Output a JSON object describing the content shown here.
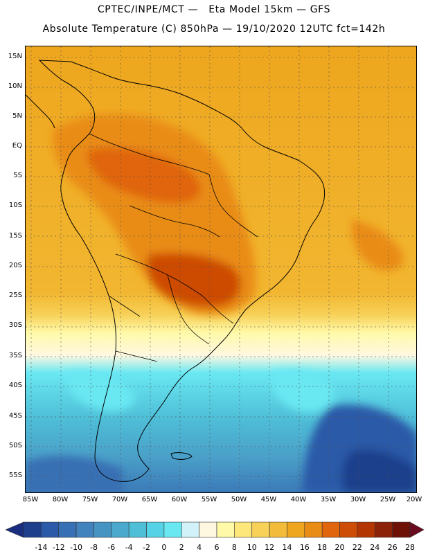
{
  "header": {
    "line1": "CPTEC/INPE/MCT —   Eta Model 15km — GFS",
    "line2": "Absolute Temperature (C) 850hPa — 19/10/2020 12UTC fct=142h"
  },
  "map": {
    "region": "South America",
    "lat_labels": [
      "15N",
      "10N",
      "5N",
      "EQ",
      "5S",
      "10S",
      "15S",
      "20S",
      "25S",
      "30S",
      "35S",
      "40S",
      "45S",
      "50S",
      "55S"
    ],
    "lon_labels": [
      "85W",
      "80W",
      "75W",
      "70W",
      "65W",
      "60W",
      "55W",
      "50W",
      "45W",
      "40W",
      "35W",
      "30W",
      "25W",
      "20W"
    ]
  },
  "colorbar": {
    "ticks": [
      "-14",
      "-12",
      "-10",
      "-8",
      "-6",
      "-4",
      "-2",
      "0",
      "2",
      "4",
      "6",
      "8",
      "10",
      "12",
      "14",
      "16",
      "18",
      "20",
      "22",
      "24",
      "26",
      "28"
    ],
    "colors": [
      "#1e3f8c",
      "#2a5aa8",
      "#3770b4",
      "#4282bd",
      "#4694c2",
      "#4aa9cc",
      "#4fbfd8",
      "#56d2e6",
      "#69e8f2",
      "#d0f2f8",
      "#fff8e0",
      "#fff9a8",
      "#fde77a",
      "#f7d158",
      "#f2bc3a",
      "#eea61e",
      "#e98c16",
      "#e0650c",
      "#cd4c06",
      "#b33602",
      "#8c2208",
      "#6e1208"
    ],
    "under_color": "#1a2e80",
    "over_color": "#6a0a1e"
  }
}
